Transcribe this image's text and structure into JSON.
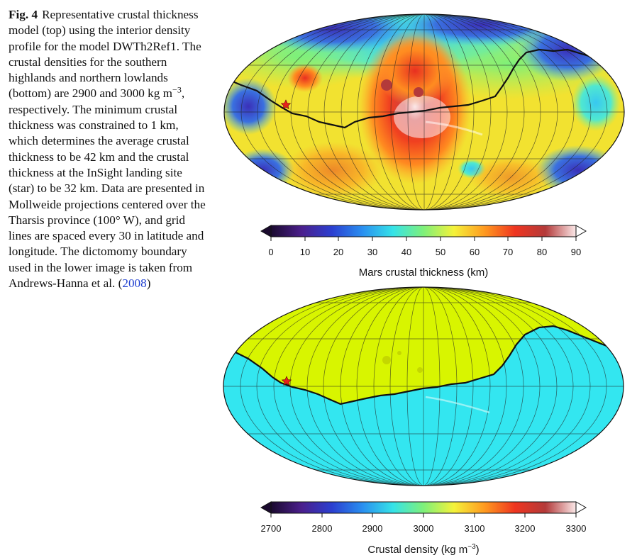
{
  "caption": {
    "label": "Fig. 4",
    "text_before_sup": "Representative crustal thickness model (top) using the interior density profile for the model DWTh2Ref1. The crustal densities for the southern highlands and northern lowlands (bottom) are 2900 and 3000 kg m",
    "sup": "−3",
    "text_after_sup": ", respectively. The minimum crustal thickness was constrained to 1 km, which determines the average crustal thickness to be 42 km and the crustal thickness at the InSight landing site (star) to be 32 km. Data are presented in Mollweide projections centered over the Tharsis province (100° W), and grid lines are spaced every 30 in latitude and longitude. The dictomomy boundary used in the lower image is taken from Andrews-Hanna et al. (",
    "citation_year": "2008",
    "text_end": ")"
  },
  "top_colorbar": {
    "ticks": [
      "0",
      "10",
      "20",
      "30",
      "40",
      "50",
      "60",
      "70",
      "80",
      "90"
    ],
    "label": "Mars crustal thickness (km)",
    "colors": [
      "#1a0a2e",
      "#4b1f8c",
      "#2b3fd0",
      "#2a8ff0",
      "#35e3e8",
      "#7ef07a",
      "#f4f23a",
      "#ff9a20",
      "#ef3520",
      "#b33a3a",
      "#fbe8e8"
    ]
  },
  "bottom_colorbar": {
    "ticks": [
      "2700",
      "2800",
      "2900",
      "3000",
      "3100",
      "3200",
      "3300"
    ],
    "label_main": "Crustal density (kg m",
    "label_sup": "−3",
    "label_end": ")",
    "colors": [
      "#1a0a2e",
      "#4b1f8c",
      "#2b3fd0",
      "#2a8ff0",
      "#35e3e8",
      "#7ef07a",
      "#f4f23a",
      "#ff9a20",
      "#ef3520",
      "#b33a3a",
      "#fbe8e8"
    ]
  },
  "maps": {
    "highlands_color": "#33e6f0",
    "lowlands_color": "#d8f500",
    "boundary_color": "#111111",
    "star_color": "#e8201c"
  }
}
